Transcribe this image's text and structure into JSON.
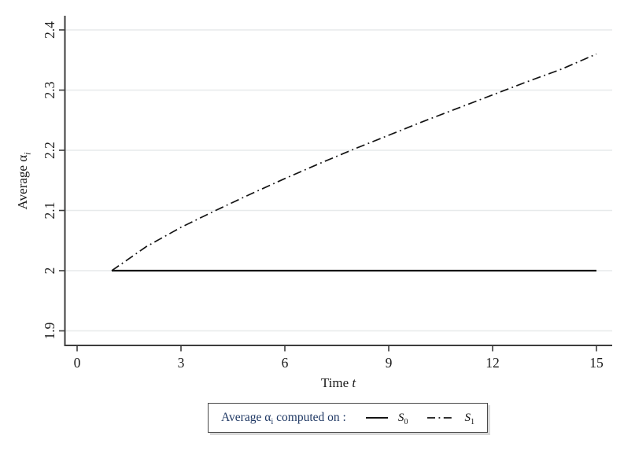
{
  "figure": {
    "y_axis_title": {
      "pre": "Average α",
      "sub": "i"
    },
    "x_axis_title": {
      "pre": "Time ",
      "var": "t"
    }
  },
  "legend": {
    "title_pre": "Average α",
    "title_sub": "i",
    "title_post": " computed on :",
    "entries": [
      {
        "name": "S",
        "sub": "0",
        "style": "solid"
      },
      {
        "name": "S",
        "sub": "1",
        "style": "dash-dot"
      }
    ]
  },
  "colors": {
    "line": "#141414",
    "grid": "#e7eaeb",
    "axis": "#3d3d3d",
    "tick_label": "#1a1a1a",
    "legend_text": "#1f3864"
  },
  "chart_data": {
    "type": "line",
    "title": "",
    "xlabel": "Time t",
    "ylabel": "Average α_i",
    "xlim": [
      0,
      15
    ],
    "ylim": [
      1.9,
      2.4
    ],
    "grid": "horizontal-only",
    "legend_position": "bottom-center",
    "x_ticks": [
      0,
      3,
      6,
      9,
      12,
      15
    ],
    "x_tick_labels": [
      "0",
      "3",
      "6",
      "9",
      "12",
      "15"
    ],
    "y_ticks": [
      1.9,
      2,
      2.1,
      2.2,
      2.3,
      2.4
    ],
    "y_tick_labels": [
      "1.9",
      "2",
      "2.1",
      "2.2",
      "2.3",
      "2.4"
    ],
    "x": [
      1,
      2,
      3,
      4,
      5,
      6,
      7,
      8,
      9,
      10,
      11,
      12,
      13,
      14,
      15
    ],
    "series": [
      {
        "name": "S0",
        "label": "S_0",
        "line_style": "solid",
        "values": [
          2.0,
          2.0,
          2.0,
          2.0,
          2.0,
          2.0,
          2.0,
          2.0,
          2.0,
          2.0,
          2.0,
          2.0,
          2.0,
          2.0,
          2.0
        ]
      },
      {
        "name": "S1",
        "label": "S_1",
        "line_style": "dash-dot",
        "values": [
          2.0,
          2.04,
          2.072,
          2.1,
          2.127,
          2.153,
          2.178,
          2.202,
          2.225,
          2.248,
          2.27,
          2.292,
          2.314,
          2.335,
          2.36
        ]
      }
    ]
  }
}
